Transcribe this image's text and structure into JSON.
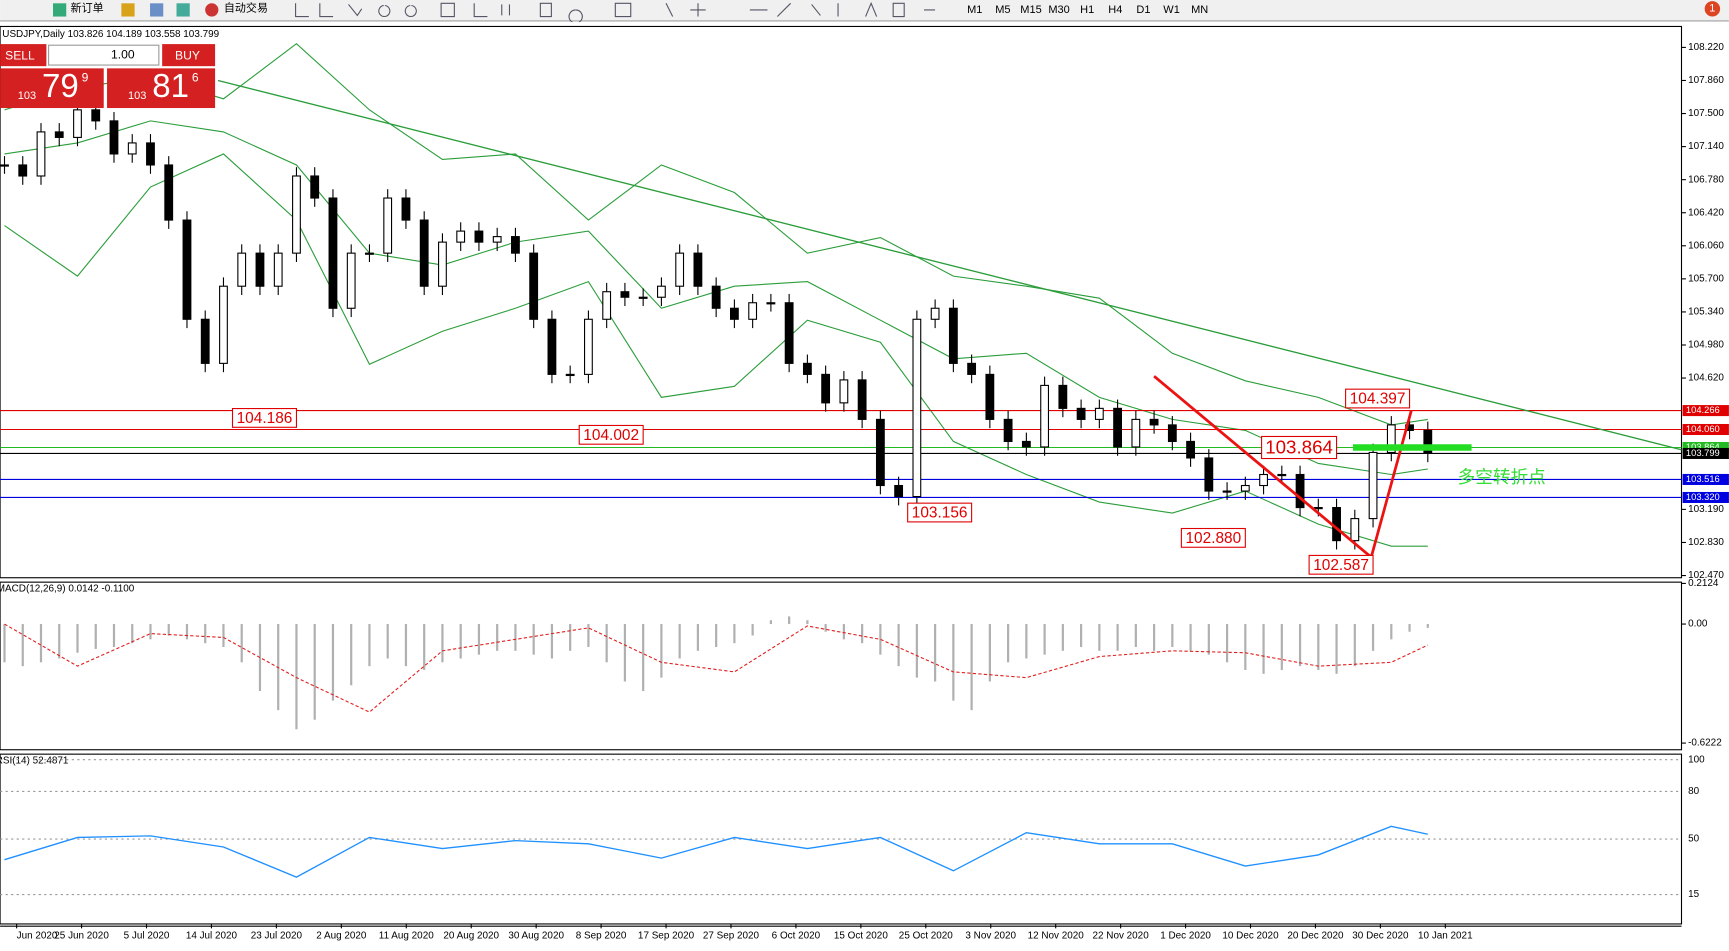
{
  "toolbar": {
    "new_order": "新订单",
    "auto_trading": "自动交易",
    "timeframes": [
      "M1",
      "M5",
      "M15",
      "M30",
      "H1",
      "H4",
      "D1",
      "W1",
      "MN"
    ],
    "alerts": "1"
  },
  "trade_panel": {
    "sell": "SELL",
    "buy": "BUY",
    "lots": "1.00",
    "sell_price": {
      "big": "103",
      "main": "79",
      "pip": "9"
    },
    "buy_price": {
      "big": "103",
      "main": "81",
      "pip": "6"
    }
  },
  "chart": {
    "type": "candlestick",
    "title": "USDJPY,Daily 103.826 104.189 103.558 103.799",
    "x_labels": [
      "Jun 2020",
      "25 Jun 2020",
      "5 Jul 2020",
      "14 Jul 2020",
      "23 Jul 2020",
      "2 Aug 2020",
      "11 Aug 2020",
      "20 Aug 2020",
      "30 Aug 2020",
      "8 Sep 2020",
      "17 Sep 2020",
      "27 Sep 2020",
      "6 Oct 2020",
      "15 Oct 2020",
      "25 Oct 2020",
      "3 Nov 2020",
      "12 Nov 2020",
      "22 Nov 2020",
      "1 Dec 2020",
      "10 Dec 2020",
      "20 Dec 2020",
      "30 Dec 2020",
      "10 Jan 2021"
    ],
    "close": [
      106.94,
      106.82,
      107.3,
      107.24,
      107.54,
      107.42,
      107.06,
      107.18,
      106.94,
      106.34,
      105.26,
      104.78,
      105.62,
      105.98,
      105.62,
      105.98,
      106.82,
      106.58,
      105.38,
      105.98,
      105.98,
      106.58,
      106.34,
      105.62,
      106.1,
      106.22,
      106.1,
      106.16,
      105.98,
      105.26,
      104.66,
      104.66,
      105.26,
      105.56,
      105.5,
      105.5,
      105.62,
      105.98,
      105.62,
      105.38,
      105.26,
      105.44,
      105.44,
      104.78,
      104.66,
      104.35,
      104.6,
      104.17,
      103.45,
      103.33,
      105.26,
      105.38,
      104.78,
      104.66,
      104.17,
      103.93,
      103.87,
      104.54,
      104.29,
      104.17,
      104.29,
      103.87,
      104.17,
      104.11,
      103.93,
      103.75,
      103.39,
      103.39,
      103.45,
      103.57,
      103.57,
      103.21,
      103.21,
      102.85,
      103.09,
      103.81,
      104.11,
      104.05,
      103.8
    ],
    "ylim": [
      102.446,
      108.448
    ],
    "yticks": [
      {
        "value": 108.22,
        "label": "108.220"
      },
      {
        "value": 107.86,
        "label": "107.860"
      },
      {
        "value": 107.5,
        "label": "107.500"
      },
      {
        "value": 107.14,
        "label": "107.140"
      },
      {
        "value": 106.78,
        "label": "106.780"
      },
      {
        "value": 106.42,
        "label": "106.420"
      },
      {
        "value": 106.06,
        "label": "106.060"
      },
      {
        "value": 105.7,
        "label": "105.700"
      },
      {
        "value": 105.34,
        "label": "105.340"
      },
      {
        "value": 104.98,
        "label": "104.980"
      },
      {
        "value": 104.62,
        "label": "104.620"
      },
      {
        "value": 103.19,
        "label": "103.190"
      },
      {
        "value": 102.83,
        "label": "102.830"
      },
      {
        "value": 102.47,
        "label": "102.470"
      }
    ],
    "price_lines": [
      {
        "value": 104.266,
        "label": "104.266",
        "color": "#e00000"
      },
      {
        "value": 104.06,
        "label": "104.060",
        "color": "#e00000"
      },
      {
        "value": 103.864,
        "label": "103.864",
        "color": "#22bb22"
      },
      {
        "value": 103.799,
        "label": "103.799",
        "color": "#000000"
      },
      {
        "value": 103.516,
        "label": "103.516",
        "color": "#0000e0"
      },
      {
        "value": 103.32,
        "label": "103.320",
        "color": "#0000e0"
      }
    ],
    "band_index": [
      0,
      4,
      8,
      12,
      16,
      20,
      24,
      28,
      32,
      36,
      40,
      44,
      48,
      52,
      56,
      60,
      64,
      68,
      72,
      76,
      78
    ],
    "bands": [
      {
        "name": "upper",
        "color": "#2a9d3a",
        "values": [
          107.54,
          107.78,
          107.9,
          107.66,
          108.26,
          107.54,
          107.0,
          107.06,
          106.34,
          106.94,
          106.64,
          105.98,
          106.15,
          105.73,
          105.62,
          105.49,
          104.89,
          104.59,
          104.41,
          104.11,
          104.17
        ]
      },
      {
        "name": "middle",
        "color": "#2a9d3a",
        "values": [
          107.06,
          107.18,
          107.42,
          107.3,
          106.94,
          105.98,
          105.85,
          106.1,
          106.22,
          105.38,
          105.62,
          105.67,
          105.25,
          104.83,
          104.89,
          104.41,
          104.17,
          104.05,
          103.69,
          103.57,
          103.63
        ]
      },
      {
        "name": "lower",
        "color": "#2a9d3a",
        "values": [
          106.28,
          105.73,
          106.7,
          107.06,
          106.34,
          104.77,
          105.13,
          105.38,
          105.67,
          104.41,
          104.53,
          105.25,
          105.01,
          103.93,
          103.57,
          103.27,
          103.15,
          103.39,
          103.03,
          102.79,
          102.79
        ]
      }
    ],
    "trendline": {
      "color": "#2a9d3a",
      "index": [
        11.7,
        91.9
      ],
      "values": [
        107.86,
        103.84
      ]
    },
    "arrows": {
      "color": "#ee1111",
      "index": [
        63,
        74.9,
        77.1
      ],
      "values": [
        104.64,
        102.67,
        104.27
      ]
    },
    "pivot_bar": {
      "color": "#22dd22",
      "index": [
        73.9,
        80.4
      ],
      "value": 103.864
    },
    "pivot_label": "多空转折点",
    "annotations": [
      {
        "index": 16,
        "value": 104.186,
        "label": "104.186"
      },
      {
        "index": 35,
        "value": 104.002,
        "label": "104.002"
      },
      {
        "index": 53,
        "value": 103.156,
        "label": "103.156"
      },
      {
        "index": 68,
        "value": 102.88,
        "label": "102.880"
      },
      {
        "index": 75,
        "value": 102.587,
        "label": "102.587"
      },
      {
        "index": 73,
        "value": 103.864,
        "label": "103.864"
      },
      {
        "index": 77,
        "value": 104.397,
        "label": "104.397"
      }
    ],
    "macd": {
      "title": "MACD(12,26,9) 0.0142 -0.1100",
      "ylim": [
        -0.657,
        0.219
      ],
      "yticks": [
        0.2124,
        {
          "value": 0,
          "label": "0.00"
        },
        -0.6222
      ],
      "histogram": [
        -0.2,
        -0.22,
        -0.2,
        -0.18,
        -0.15,
        -0.13,
        -0.12,
        -0.1,
        -0.08,
        -0.06,
        -0.08,
        -0.1,
        -0.12,
        -0.2,
        -0.35,
        -0.45,
        -0.55,
        -0.5,
        -0.4,
        -0.32,
        -0.22,
        -0.18,
        -0.22,
        -0.24,
        -0.2,
        -0.18,
        -0.16,
        -0.14,
        -0.14,
        -0.16,
        -0.18,
        -0.14,
        -0.12,
        -0.2,
        -0.3,
        -0.35,
        -0.28,
        -0.18,
        -0.14,
        -0.12,
        -0.1,
        -0.06,
        0.02,
        0.04,
        0.02,
        -0.04,
        -0.08,
        -0.1,
        -0.16,
        -0.22,
        -0.28,
        -0.3,
        -0.4,
        -0.45,
        -0.3,
        -0.2,
        -0.18,
        -0.16,
        -0.14,
        -0.12,
        -0.14,
        -0.14,
        -0.12,
        -0.14,
        -0.12,
        -0.14,
        -0.16,
        -0.2,
        -0.24,
        -0.26,
        -0.24,
        -0.22,
        -0.24,
        -0.26,
        -0.22,
        -0.14,
        -0.08,
        -0.04,
        -0.02
      ],
      "signal": [
        0.0,
        -0.22,
        -0.05,
        -0.07,
        -0.28,
        -0.46,
        -0.14,
        -0.08,
        -0.02,
        -0.2,
        -0.25,
        -0.01,
        -0.08,
        -0.25,
        -0.28,
        -0.17,
        -0.14,
        -0.15,
        -0.22,
        -0.2,
        -0.11
      ]
    },
    "rsi": {
      "title": "RSI(14) 52.4871",
      "ylim": [
        -3.5,
        103.5
      ],
      "yticks": [
        100,
        80,
        50,
        15
      ],
      "values": [
        37,
        51,
        52,
        45,
        26,
        51,
        44,
        49,
        47,
        38,
        51,
        44,
        51,
        30,
        54,
        47,
        47,
        33,
        40,
        58,
        53
      ]
    }
  }
}
